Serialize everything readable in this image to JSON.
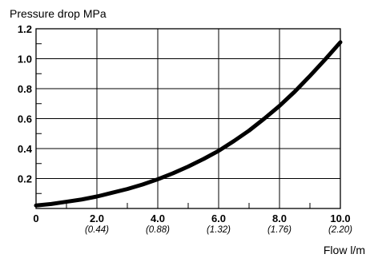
{
  "chart_data": {
    "type": "line",
    "title": "",
    "ylabel": "Pressure drop MPa",
    "xlabel": "Flow l/m",
    "xlim": [
      0,
      10
    ],
    "ylim": [
      0,
      1.2
    ],
    "grid": true,
    "legend": "none",
    "x_ticks": [
      {
        "value": 0,
        "label": "0",
        "sublabel": ""
      },
      {
        "value": 2,
        "label": "2.0",
        "sublabel": "(0.44)"
      },
      {
        "value": 4,
        "label": "4.0",
        "sublabel": "(0.88)"
      },
      {
        "value": 6,
        "label": "6.0",
        "sublabel": "(1.32)"
      },
      {
        "value": 8,
        "label": "8.0",
        "sublabel": "(1.76)"
      },
      {
        "value": 10,
        "label": "10.0",
        "sublabel": "(2.20)"
      }
    ],
    "y_ticks": [
      {
        "value": 0.2,
        "label": "0.2"
      },
      {
        "value": 0.4,
        "label": "0.4"
      },
      {
        "value": 0.6,
        "label": "0.6"
      },
      {
        "value": 0.8,
        "label": "0.8"
      },
      {
        "value": 1.0,
        "label": "1.0"
      },
      {
        "value": 1.2,
        "label": "1.2"
      }
    ],
    "series": [
      {
        "color": "#000000",
        "x": [
          0,
          0.5,
          1,
          1.5,
          2,
          2.5,
          3,
          3.5,
          4,
          4.5,
          5,
          5.5,
          6,
          6.5,
          7,
          7.5,
          8,
          8.5,
          9,
          9.5,
          10
        ],
        "y": [
          0.02,
          0.03,
          0.045,
          0.06,
          0.08,
          0.105,
          0.13,
          0.16,
          0.195,
          0.235,
          0.28,
          0.33,
          0.385,
          0.45,
          0.52,
          0.6,
          0.685,
          0.78,
          0.885,
          0.995,
          1.11
        ]
      }
    ]
  }
}
